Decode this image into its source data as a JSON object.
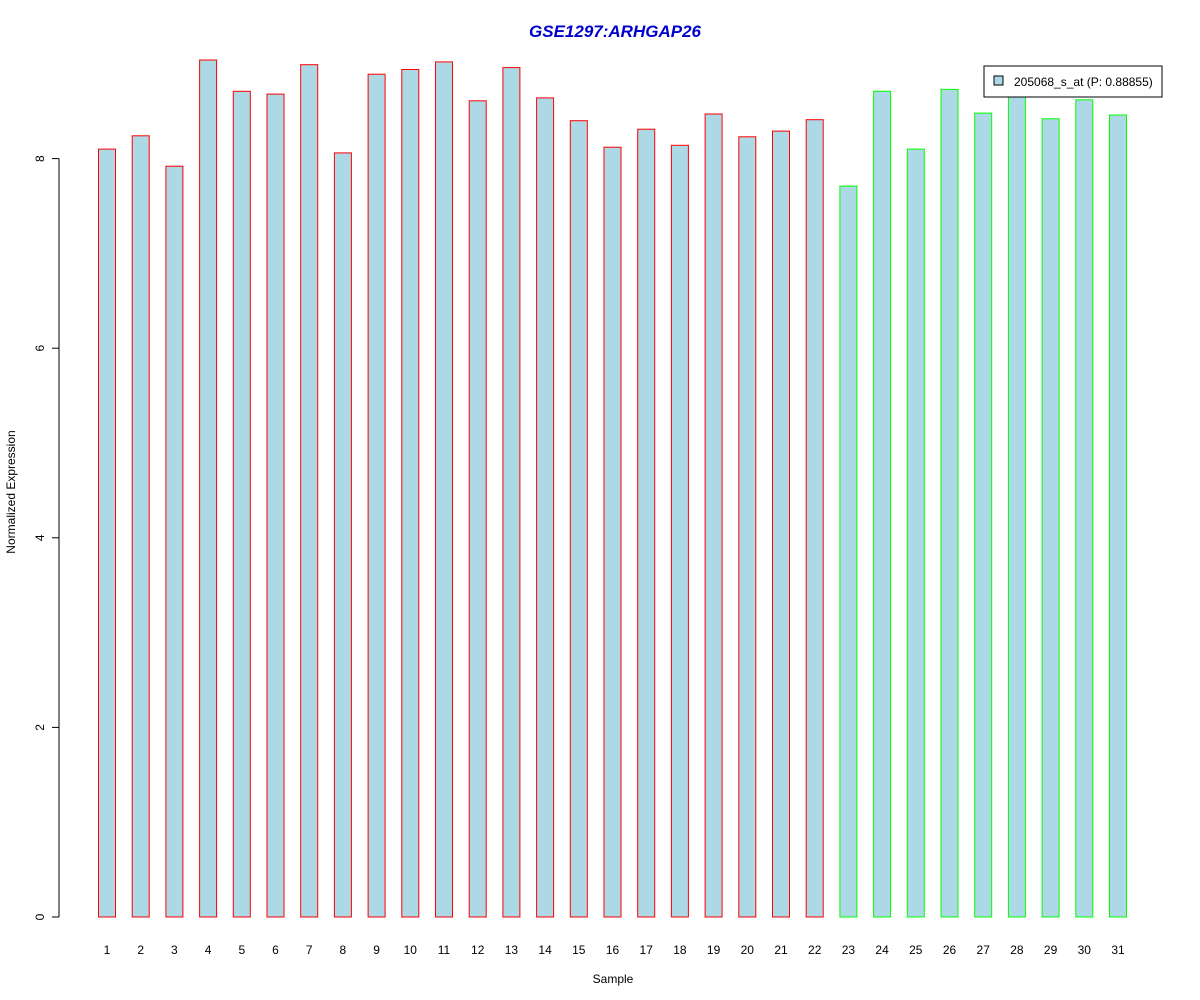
{
  "chart_data": {
    "type": "bar",
    "title": "GSE1297:ARHGAP26",
    "xlabel": "Sample",
    "ylabel": "Normalized Expression",
    "categories": [
      "1",
      "2",
      "3",
      "4",
      "5",
      "6",
      "7",
      "8",
      "9",
      "10",
      "11",
      "12",
      "13",
      "14",
      "15",
      "16",
      "17",
      "18",
      "19",
      "20",
      "21",
      "22",
      "23",
      "24",
      "25",
      "26",
      "27",
      "28",
      "29",
      "30",
      "31"
    ],
    "values": [
      8.1,
      8.24,
      7.92,
      9.04,
      8.71,
      8.68,
      8.99,
      8.06,
      8.89,
      8.94,
      9.02,
      8.61,
      8.96,
      8.64,
      8.4,
      8.12,
      8.31,
      8.14,
      8.47,
      8.23,
      8.29,
      8.41,
      7.71,
      8.71,
      8.1,
      8.73,
      8.48,
      8.68,
      8.42,
      8.62,
      8.46
    ],
    "groups": [
      "red",
      "red",
      "red",
      "red",
      "red",
      "red",
      "red",
      "red",
      "red",
      "red",
      "red",
      "red",
      "red",
      "red",
      "red",
      "red",
      "red",
      "red",
      "red",
      "red",
      "red",
      "red",
      "green",
      "green",
      "green",
      "green",
      "green",
      "green",
      "green",
      "green",
      "green"
    ],
    "yticks": [
      0,
      2,
      4,
      6,
      8
    ],
    "ylim": [
      0,
      9.2
    ],
    "legend": {
      "label": "205068_s_at (P: 0.88855)",
      "position": "top-right"
    },
    "colors": {
      "bar_fill": "#add8e6",
      "border_group1": "#ff0000",
      "border_group2": "#00ff00",
      "title": "#0000cd"
    }
  }
}
